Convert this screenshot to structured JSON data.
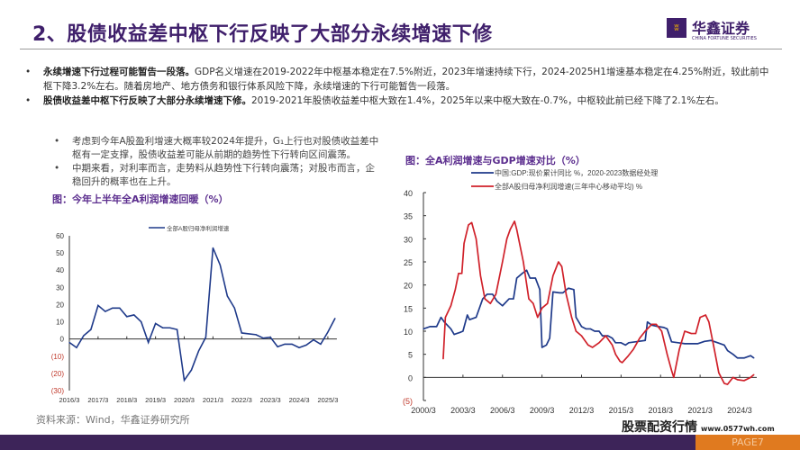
{
  "header": {
    "title": "2、股债收益差中枢下行反映了大部分永续增速下修",
    "logo_cn": "华鑫证券",
    "logo_en": "CHINA FORTUNE SECURITIES",
    "logo_icon": "fortune-flame-icon"
  },
  "bullets": [
    {
      "bold": "永续增速下行过程可能暂告一段落。",
      "text": "GDP名义增速在2019-2022年中枢基本稳定在7.5%附近，2023年增速持续下行，2024-2025H1增速基本稳定在4.25%附近，较此前中枢下降3.2%左右。随着房地产、地方债务和银行体系风险下降，永续增速的下行可能暂告一段落。"
    },
    {
      "bold": "股债收益差中枢下行反映了大部分永续增速下修。",
      "text": "2019-2021年股债收益差中枢大致在1.4%，2025年以来中枢大致在-0.7%，中枢较此前已经下降了2.1%左右。"
    }
  ],
  "left_bullets": [
    "考虑到今年A股盈利增速大概率较2024年提升，G₁上行也对股债收益差中枢有一定支撑，股债收益差可能从前期的趋势性下行转向区间震荡。",
    "中期来看，对利率而言，走势料从趋势性下行转向震荡；对股市而言，企稳回升的概率也在上升。"
  ],
  "source": "资料来源：Wind，华鑫证券研究所",
  "page": "PAGE7",
  "watermark": {
    "name": "股票配资行情",
    "url": "www.0577wh.com"
  },
  "colors": {
    "brand": "#3f1f6b",
    "blue": "#1f3a8a",
    "red": "#d0212a",
    "footer": "#3d2459",
    "negative_tick": "#c0392b"
  },
  "chart_data": [
    {
      "type": "line",
      "title": "图：今年上半年全A利润增速回暖（%）",
      "ylim": [
        -30,
        60
      ],
      "yticks": [
        "60",
        "50",
        "40",
        "30",
        "20",
        "10",
        "0",
        "(10)",
        "(20)",
        "(30)"
      ],
      "xticks": [
        "2016/3",
        "2017/3",
        "2018/3",
        "2019/3",
        "2020/3",
        "2021/3",
        "2022/3",
        "2023/3",
        "2024/3",
        "2025/3"
      ],
      "grid": false,
      "legend": "top",
      "categories": [
        "2016/3",
        "2016/6",
        "2016/9",
        "2016/12",
        "2017/3",
        "2017/6",
        "2017/9",
        "2017/12",
        "2018/3",
        "2018/6",
        "2018/9",
        "2018/12",
        "2019/3",
        "2019/6",
        "2019/9",
        "2019/12",
        "2020/3",
        "2020/6",
        "2020/9",
        "2020/12",
        "2021/3",
        "2021/6",
        "2021/9",
        "2021/12",
        "2022/3",
        "2022/6",
        "2022/9",
        "2022/12",
        "2023/3",
        "2023/6",
        "2023/9",
        "2023/12",
        "2024/3",
        "2024/6",
        "2024/9",
        "2024/12",
        "2025/3",
        "2025/6"
      ],
      "series": [
        {
          "name": "全部A股归母净利润增速",
          "values": [
            -2,
            -5,
            2,
            5.5,
            19.5,
            16,
            18,
            18,
            13,
            14,
            10,
            -2,
            9,
            6.5,
            6.5,
            5.5,
            -24,
            -18,
            -7,
            1,
            53,
            43,
            25,
            18,
            3.5,
            3,
            2.5,
            0.5,
            1,
            -4.5,
            -3,
            -3,
            -5,
            -3.5,
            -0.5,
            -3,
            4,
            12
          ]
        }
      ]
    },
    {
      "type": "line",
      "title": "图：全A利润增速与GDP增速对比（%）",
      "ylim": [
        -5,
        40
      ],
      "yticks": [
        "40",
        "35",
        "30",
        "25",
        "20",
        "15",
        "10",
        "5",
        "0",
        "(5)"
      ],
      "xticks": [
        "2000/3",
        "2003/3",
        "2006/3",
        "2009/3",
        "2012/3",
        "2015/3",
        "2018/3",
        "2021/3",
        "2024/3"
      ],
      "grid": false,
      "legend": "top",
      "series": [
        {
          "name": "中国:GDP:现价累计同比 %，2020-2023数据经处理",
          "color": "#1f3a8a",
          "x": [
            "2000-03",
            "2000-09",
            "2001-03",
            "2001-07",
            "2001-10",
            "2002-04",
            "2002-07",
            "2003-01",
            "2003-03",
            "2003-07",
            "2003-09",
            "2004-03",
            "2004-09",
            "2005-01",
            "2005-06",
            "2005-10",
            "2006-03",
            "2006-09",
            "2007-01",
            "2007-04",
            "2007-09",
            "2008-01",
            "2008-04",
            "2008-09",
            "2009-01",
            "2009-03",
            "2009-07",
            "2009-10",
            "2010-01",
            "2010-07",
            "2010-10",
            "2011-03",
            "2011-08",
            "2011-10",
            "2012-03",
            "2012-07",
            "2012-11",
            "2013-03",
            "2013-07",
            "2013-10",
            "2014-03",
            "2014-07",
            "2014-10",
            "2015-03",
            "2015-07",
            "2015-10",
            "2016-07",
            "2017-01",
            "2017-03",
            "2017-07",
            "2018-01",
            "2018-06",
            "2018-09",
            "2019-01",
            "2019-07",
            "2020-01",
            "2021-01",
            "2021-07",
            "2022-01",
            "2022-07",
            "2023-01",
            "2023-04",
            "2023-09",
            "2024-01",
            "2024-07",
            "2025-01",
            "2025-04"
          ],
          "y": [
            10.5,
            11,
            11,
            13,
            12,
            10.5,
            9.3,
            9.8,
            10,
            13.5,
            12.5,
            13,
            17,
            18,
            18,
            16.5,
            15.5,
            17,
            17,
            21.5,
            22.5,
            23.2,
            21.5,
            21.5,
            19,
            6.5,
            7,
            8.5,
            18.5,
            18.3,
            18.3,
            19.3,
            19,
            13,
            11,
            10.5,
            10.5,
            10,
            10,
            9,
            9,
            8.5,
            7.5,
            7.5,
            7,
            7.5,
            7.8,
            8,
            12,
            11.3,
            11,
            10.8,
            10.5,
            7.7,
            7.5,
            7.3,
            7.3,
            7.8,
            8,
            7.5,
            7,
            5.8,
            5,
            4.2,
            4.2,
            4.7,
            4.2
          ]
        },
        {
          "name": "全部A股归母净利润增速(三年中心移动平均) %",
          "color": "#d0212a",
          "x": [
            "2001-09",
            "2001-11",
            "2002-04",
            "2002-08",
            "2002-11",
            "2003-02",
            "2003-04",
            "2003-08",
            "2003-11",
            "2004-03",
            "2004-07",
            "2004-11",
            "2005-04",
            "2005-09",
            "2006-03",
            "2006-07",
            "2006-10",
            "2007-02",
            "2007-04",
            "2007-10",
            "2008-03",
            "2008-07",
            "2008-11",
            "2009-03",
            "2009-08",
            "2010-01",
            "2010-06",
            "2010-09",
            "2011-01",
            "2011-06",
            "2011-10",
            "2012-03",
            "2012-09",
            "2013-01",
            "2013-07",
            "2014-01",
            "2014-07",
            "2014-10",
            "2015-02",
            "2015-04",
            "2015-09",
            "2016-02",
            "2016-08",
            "2017-01",
            "2017-07",
            "2017-11",
            "2018-04",
            "2018-09",
            "2019-01",
            "2019-03",
            "2019-08",
            "2020-01",
            "2020-07",
            "2020-11",
            "2021-03",
            "2021-08",
            "2021-11",
            "2022-04",
            "2022-08",
            "2023-01",
            "2023-04",
            "2023-09",
            "2024-01",
            "2024-07",
            "2025-01",
            "2025-04"
          ],
          "y": [
            4,
            13,
            15.5,
            19,
            22.5,
            22.5,
            29,
            33,
            33.5,
            30,
            22,
            17,
            16,
            18,
            25,
            30,
            32,
            33.8,
            32,
            25,
            17,
            16,
            13,
            15,
            16,
            22,
            25,
            24,
            18,
            13,
            10,
            9,
            7,
            6.5,
            7.5,
            9,
            7,
            5,
            3.5,
            3.2,
            4.5,
            6,
            8.5,
            10,
            11.5,
            11.5,
            10,
            5,
            1.5,
            0,
            6,
            10,
            9.5,
            9.5,
            13,
            13.5,
            12,
            6,
            1,
            -1.3,
            -1.5,
            0,
            -0.5,
            -0.7,
            0,
            0.6
          ]
        }
      ]
    }
  ]
}
